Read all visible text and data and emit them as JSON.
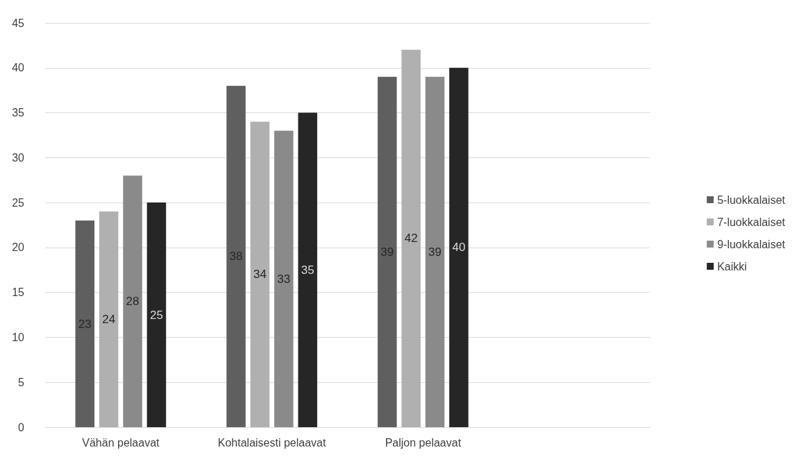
{
  "chart_data": {
    "type": "bar",
    "categories": [
      "Vähän pelaavat",
      "Kohtalaisesti pelaavat",
      "Paljon pelaavat",
      null
    ],
    "series": [
      {
        "name": "5-luokkalaiset",
        "color": "#5f5f5f",
        "values": [
          23,
          38,
          39,
          null
        ]
      },
      {
        "name": "7-luokkalaiset",
        "color": "#b0b0b0",
        "values": [
          24,
          34,
          42,
          null
        ]
      },
      {
        "name": "9-luokkalaiset",
        "color": "#8a8a8a",
        "values": [
          28,
          33,
          39,
          null
        ]
      },
      {
        "name": "Kaikki",
        "color": "#262626",
        "values": [
          25,
          35,
          40,
          null
        ]
      }
    ],
    "ylim": [
      0,
      45
    ],
    "yticks": [
      0,
      5,
      10,
      15,
      20,
      25,
      30,
      35,
      40,
      45
    ],
    "grid": "y",
    "legend": "right",
    "data_labels": true
  }
}
